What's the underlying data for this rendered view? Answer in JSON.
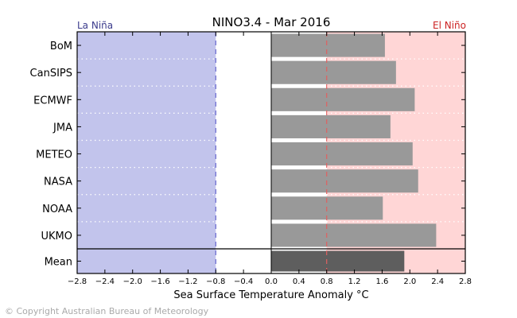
{
  "chart_data": {
    "type": "bar",
    "orientation": "horizontal",
    "title": "NINO3.4 - Mar 2016",
    "left_label": "La Niña",
    "right_label": "El Niño",
    "xlabel": "Sea Surface Temperature Anomaly °C",
    "ylabel": "",
    "xlim": [
      -2.8,
      2.8
    ],
    "xticks": [
      "−2.8",
      "−2.4",
      "−2.0",
      "−1.6",
      "−1.2",
      "−0.8",
      "−0.4",
      "0.0",
      "0.4",
      "0.8",
      "1.2",
      "1.6",
      "2.0",
      "2.4",
      "2.8"
    ],
    "xtick_values": [
      -2.8,
      -2.4,
      -2.0,
      -1.6,
      -1.2,
      -0.8,
      -0.4,
      0.0,
      0.4,
      0.8,
      1.2,
      1.6,
      2.0,
      2.4,
      2.8
    ],
    "la_nina_threshold": -0.8,
    "el_nino_threshold": 0.8,
    "categories": [
      "BoM",
      "CanSIPS",
      "ECMWF",
      "JMA",
      "METEO",
      "NASA",
      "NOAA",
      "UKMO"
    ],
    "values": [
      1.64,
      1.8,
      2.07,
      1.72,
      2.04,
      2.12,
      1.61,
      2.38
    ],
    "mean_label": "Mean",
    "mean_value": 1.92,
    "colors": {
      "la_nina_bg": "#c2c4ec",
      "el_nino_bg": "#ffd6d6",
      "bar": "#999999",
      "mean_bar": "#5e5e5e",
      "la_nina_text": "#3b3b8c",
      "el_nino_text": "#cc2222",
      "la_nina_line": "#6666cc",
      "el_nino_line": "#e06060"
    },
    "grid": "dotted horizontal separators"
  },
  "footer": {
    "copyright": "© Copyright Australian Bureau of Meteorology"
  }
}
